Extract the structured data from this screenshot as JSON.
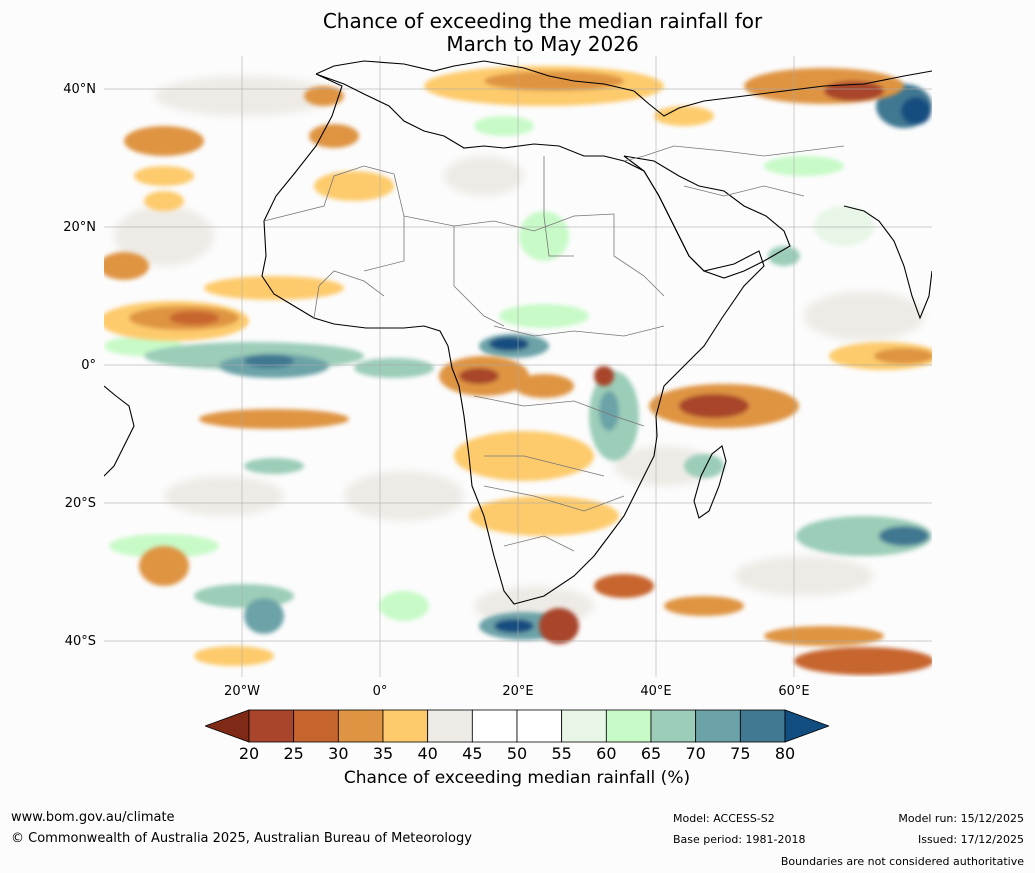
{
  "title": {
    "line1": "Chance of exceeding the median rainfall for",
    "line2": "March to May 2026"
  },
  "map": {
    "lat_labels": [
      "40°N",
      "20°N",
      "0°",
      "20°S",
      "40°S"
    ],
    "lon_labels": [
      "20°W",
      "0°",
      "20°E",
      "40°E",
      "60°E"
    ]
  },
  "colorbar": {
    "ticks": [
      "20",
      "25",
      "30",
      "35",
      "40",
      "45",
      "50",
      "55",
      "60",
      "65",
      "70",
      "75",
      "80"
    ],
    "title": "Chance of exceeding median rainfall (%)",
    "colors": [
      "#7f2a16",
      "#a8452a",
      "#c7652f",
      "#df9443",
      "#fdcb6c",
      "#eeebe6",
      "#ffffff",
      "#ffffff",
      "#e7f6e6",
      "#c8fac8",
      "#9bcdb8",
      "#6ca3a8",
      "#417892",
      "#124d80"
    ]
  },
  "footer": {
    "url": "www.bom.gov.au/climate",
    "copyright": "© Commonwealth of Australia 2025, Australian Bureau of Meteorology",
    "model": "Model: ACCESS-S2",
    "base_period": "Base period: 1981-2018",
    "model_run": "Model run: 15/12/2025",
    "issued": "Issued: 17/12/2025",
    "disclaimer": "Boundaries are not considered authoritative"
  }
}
